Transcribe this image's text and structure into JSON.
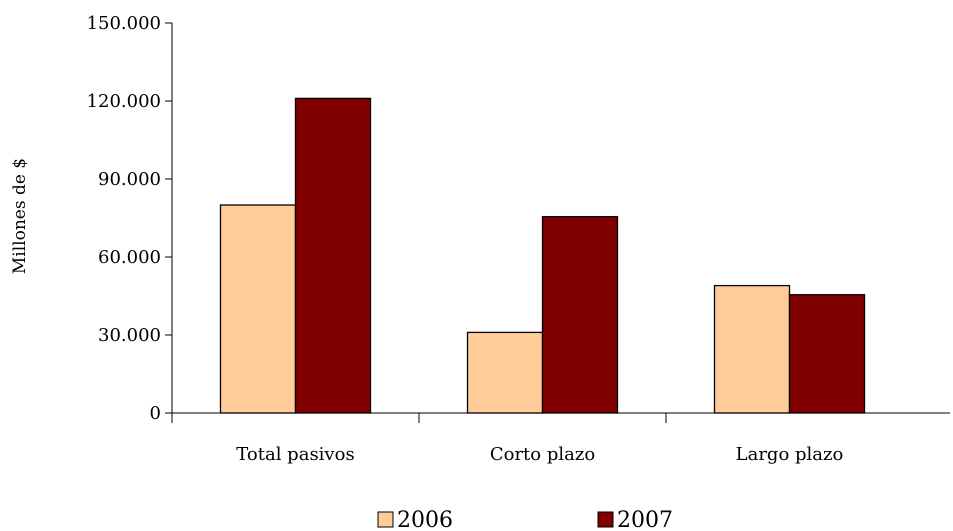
{
  "chart_data": {
    "type": "bar",
    "title": "",
    "xlabel": "",
    "ylabel": "Millones de $",
    "ylim": [
      0,
      150000
    ],
    "ytick_values": [
      0,
      30000,
      60000,
      90000,
      120000,
      150000
    ],
    "ytick_labels": [
      "0",
      "30.000",
      "60.000",
      "90.000",
      "120.000",
      "150.000"
    ],
    "categories": [
      "Total pasivos",
      "Corto plazo",
      "Largo plazo"
    ],
    "series": [
      {
        "name": "2006",
        "color": "#FFCC99",
        "values": [
          80000,
          31000,
          49000
        ]
      },
      {
        "name": "2007",
        "color": "#800000",
        "values": [
          121000,
          75500,
          45500
        ]
      }
    ],
    "grid": false,
    "legend_position": "bottom"
  }
}
